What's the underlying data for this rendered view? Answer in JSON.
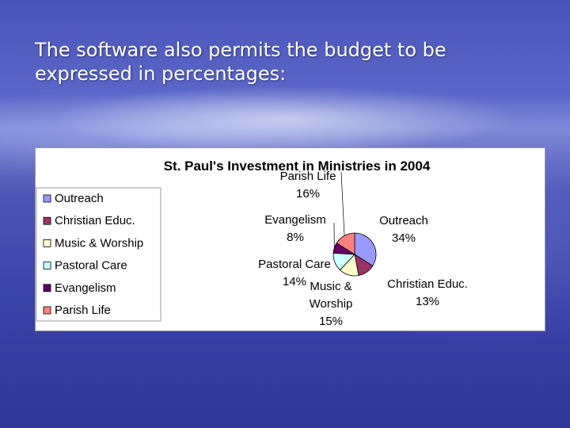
{
  "slide": {
    "title_line1": "The software also permits the budget to be",
    "title_line2": "expressed in percentages:"
  },
  "chart_data": {
    "type": "pie",
    "title": "St. Paul's Investment in Ministries in 2004",
    "legend_position": "left",
    "slices": [
      {
        "name": "Outreach",
        "percent": 34,
        "color": "#9999ff"
      },
      {
        "name": "Christian Educ.",
        "percent": 13,
        "color": "#993366"
      },
      {
        "name": "Music & Worship",
        "percent": 15,
        "color": "#ffffcc"
      },
      {
        "name": "Pastoral Care",
        "percent": 14,
        "color": "#ccffff"
      },
      {
        "name": "Evangelism",
        "percent": 8,
        "color": "#660066"
      },
      {
        "name": "Parish Life",
        "percent": 16,
        "color": "#ff8080"
      }
    ],
    "data_labels": [
      {
        "line1": "Outreach",
        "line2": "34%"
      },
      {
        "line1": "Christian Educ.",
        "line2": "13%"
      },
      {
        "line1": "Music &",
        "line2": "Worship",
        "line3": "15%"
      },
      {
        "line1": "Pastoral Care",
        "line2": "14%"
      },
      {
        "line1": "Evangelism",
        "line2": "8%"
      },
      {
        "line1": "Parish Life",
        "line2": "16%"
      }
    ]
  }
}
